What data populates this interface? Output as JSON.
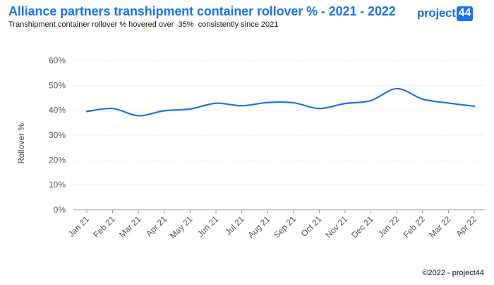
{
  "header": {
    "title": "Alliance partners transhipment container rollover % - 2021 - 2022",
    "subtitle": "Transhipment container rollover % hovered over  35%  consistently since 2021"
  },
  "logo": {
    "text": "project",
    "badge": "44"
  },
  "footer": {
    "copyright": "©2022 - project44"
  },
  "colors": {
    "title": "#1a73e8",
    "line": "#1a73e8",
    "grid": "#e6e6e6",
    "axis": "#999999"
  },
  "chart_data": {
    "type": "line",
    "title": "Alliance partners transhipment container rollover % - 2021 - 2022",
    "subtitle": "Transhipment container rollover % hovered over  35%  consistently since 2021",
    "xlabel": "",
    "ylabel": "Rollover %",
    "ylim": [
      0,
      60
    ],
    "yticks": [
      0,
      10,
      20,
      30,
      40,
      50,
      60
    ],
    "ytick_labels": [
      "0%",
      "10%",
      "20%",
      "30%",
      "40%",
      "50%",
      "60%"
    ],
    "grid": true,
    "legend": "none",
    "categories": [
      "Jan 21",
      "Feb 21",
      "Mar 21",
      "Apr 21",
      "May 21",
      "Jun 21",
      "Jul 21",
      "Aug 21",
      "Sep 21",
      "Oct 21",
      "Nov 21",
      "Dec 21",
      "Jan 22",
      "Feb 22",
      "Mar 22",
      "Apr 22"
    ],
    "series": [
      {
        "values": [
          39.5,
          40.7,
          37.8,
          39.8,
          40.5,
          42.8,
          41.8,
          43.1,
          43.0,
          40.7,
          42.7,
          43.9,
          48.7,
          44.5,
          42.9,
          41.6
        ]
      }
    ]
  }
}
